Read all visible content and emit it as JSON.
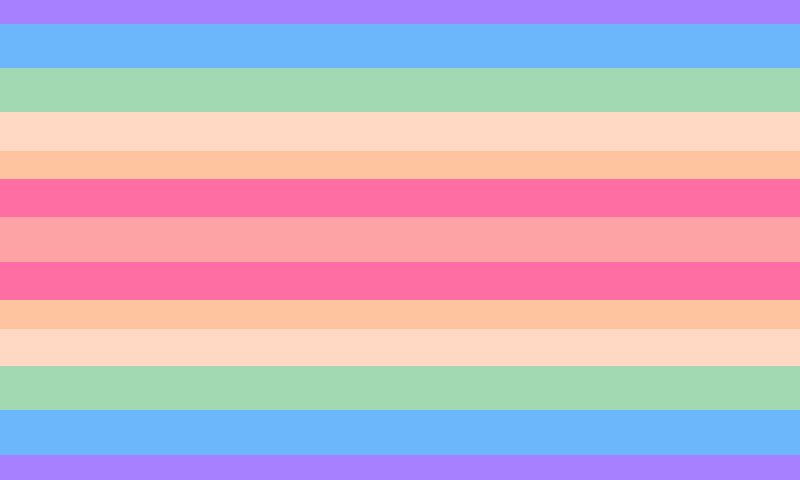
{
  "flag": {
    "stripes": [
      {
        "color": "#a680fe"
      },
      {
        "color": "#6cb6fc"
      },
      {
        "color": "#a2d9b2"
      },
      {
        "color": "#ffd9c3"
      },
      {
        "color": "#fec4a0"
      },
      {
        "color": "#fe6ea2"
      },
      {
        "color": "#fea3a5"
      },
      {
        "color": "#fe6ea2"
      },
      {
        "color": "#fec4a0"
      },
      {
        "color": "#ffd9c3"
      },
      {
        "color": "#a2d9b2"
      },
      {
        "color": "#6cb6fc"
      },
      {
        "color": "#a680fe"
      }
    ]
  }
}
